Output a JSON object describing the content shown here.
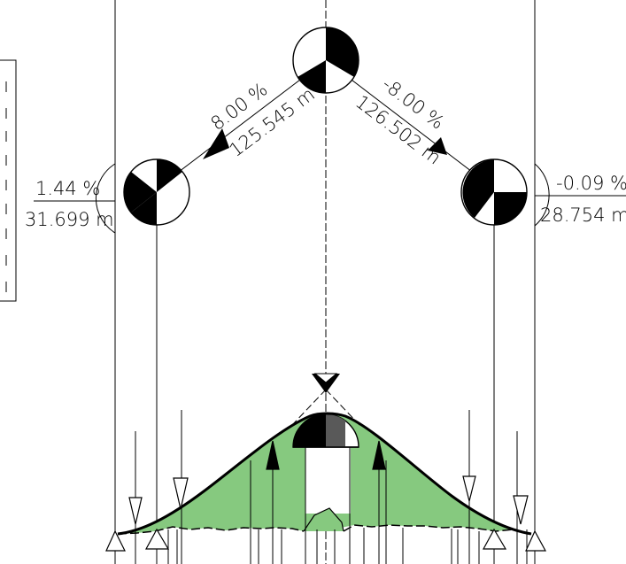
{
  "grades": [
    {
      "id": "left-end",
      "grade": "1.44 %",
      "length": "31.699 m"
    },
    {
      "id": "left-up",
      "grade": "8.00 %",
      "length": "125.545 m"
    },
    {
      "id": "right-down",
      "grade": "-8.00 %",
      "length": "126.502 m"
    },
    {
      "id": "right-end",
      "grade": "-0.09 %",
      "length": "28.754 m"
    }
  ],
  "colors": {
    "fill_area": "#86c97f",
    "line": "#000000",
    "cap_fill": "#595959"
  },
  "icons": [
    "vertex-circle-icon",
    "arrow-icon",
    "triangle-marker-icon"
  ]
}
